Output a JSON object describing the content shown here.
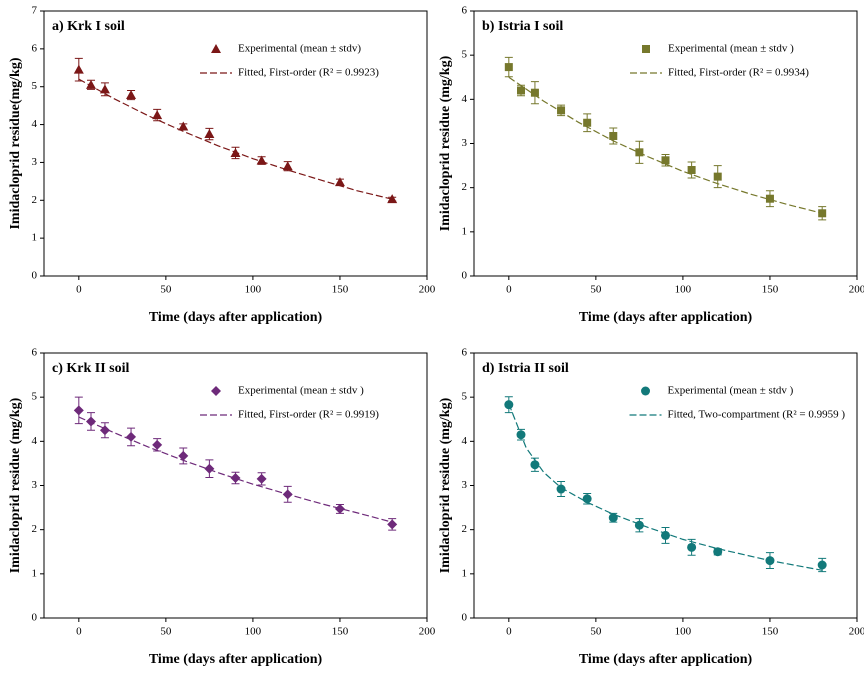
{
  "chart_data": [
    {
      "type": "scatter",
      "title": "a) Krk I soil",
      "x_label": "Time (days after application)",
      "y_label": "Imidacloprid residue(mg/kg)",
      "xlim": [
        -20,
        200
      ],
      "xticks": [
        0,
        50,
        100,
        150,
        200
      ],
      "ylim": [
        0,
        7
      ],
      "yticks": [
        0,
        1,
        2,
        3,
        4,
        5,
        6,
        7
      ],
      "series": [
        {
          "name": "Experimental (mean ± stdv)",
          "color": "#7b1717",
          "marker": "triangle",
          "x": [
            0,
            7,
            15,
            30,
            45,
            60,
            75,
            90,
            105,
            120,
            150,
            180
          ],
          "values": [
            5.45,
            5.05,
            4.93,
            4.78,
            4.25,
            3.95,
            3.75,
            3.25,
            3.05,
            2.9,
            2.48,
            2.03
          ],
          "errors": [
            0.3,
            0.12,
            0.17,
            0.12,
            0.15,
            0.07,
            0.15,
            0.15,
            0.1,
            0.12,
            0.08,
            0.05
          ]
        },
        {
          "name": "Fitted, First-order (R² = 0.9923)",
          "color": "#7b1717",
          "line": "dashed",
          "x": [
            0,
            20,
            40,
            60,
            80,
            100,
            120,
            140,
            160,
            180
          ],
          "values": [
            5.2,
            4.69,
            4.23,
            3.82,
            3.44,
            3.1,
            2.8,
            2.52,
            2.25,
            2.03
          ]
        }
      ]
    },
    {
      "type": "scatter",
      "title": "b) Istria I soil",
      "x_label": "Time (days after application)",
      "y_label": "Imidacloprid residue (mg/kg)",
      "xlim": [
        -20,
        200
      ],
      "xticks": [
        0,
        50,
        100,
        150,
        200
      ],
      "ylim": [
        0,
        6
      ],
      "yticks": [
        0,
        1,
        2,
        3,
        4,
        5,
        6
      ],
      "series": [
        {
          "name": "Experimental (mean ± stdv )",
          "color": "#76782c",
          "marker": "square",
          "x": [
            0,
            7,
            15,
            30,
            45,
            60,
            75,
            90,
            105,
            120,
            150,
            180
          ],
          "values": [
            4.73,
            4.2,
            4.15,
            3.75,
            3.47,
            3.17,
            2.8,
            2.62,
            2.4,
            2.25,
            1.75,
            1.42
          ],
          "errors": [
            0.22,
            0.12,
            0.25,
            0.12,
            0.2,
            0.18,
            0.25,
            0.13,
            0.18,
            0.25,
            0.18,
            0.15
          ]
        },
        {
          "name": "Fitted, First-order (R² = 0.9934)",
          "color": "#76782c",
          "line": "dashed",
          "x": [
            0,
            20,
            40,
            60,
            80,
            100,
            120,
            140,
            160,
            180
          ],
          "values": [
            4.5,
            3.96,
            3.48,
            3.06,
            2.7,
            2.37,
            2.09,
            1.84,
            1.62,
            1.42
          ]
        }
      ]
    },
    {
      "type": "scatter",
      "title": "c) Krk II soil",
      "x_label": "Time (days after application)",
      "y_label": "Imidacloprid residue (mg/kg)",
      "xlim": [
        -20,
        200
      ],
      "xticks": [
        0,
        50,
        100,
        150,
        200
      ],
      "ylim": [
        0,
        6
      ],
      "yticks": [
        0,
        1,
        2,
        3,
        4,
        5,
        6
      ],
      "series": [
        {
          "name": "Experimental (mean ± stdv )",
          "color": "#6e2a7a",
          "marker": "diamond",
          "x": [
            0,
            7,
            15,
            30,
            45,
            60,
            75,
            90,
            105,
            120,
            150,
            180
          ],
          "values": [
            4.7,
            4.45,
            4.25,
            4.1,
            3.92,
            3.67,
            3.38,
            3.17,
            3.15,
            2.8,
            2.47,
            2.12
          ],
          "errors": [
            0.3,
            0.2,
            0.17,
            0.2,
            0.14,
            0.18,
            0.2,
            0.13,
            0.14,
            0.18,
            0.1,
            0.13
          ]
        },
        {
          "name": "Fitted, First-order (R² = 0.9919)",
          "color": "#6e2a7a",
          "line": "dashed",
          "x": [
            0,
            20,
            40,
            60,
            80,
            100,
            120,
            140,
            160,
            180
          ],
          "values": [
            4.55,
            4.2,
            3.87,
            3.57,
            3.29,
            3.03,
            2.8,
            2.58,
            2.38,
            2.17
          ]
        }
      ]
    },
    {
      "type": "scatter",
      "title": "d) Istria II soil",
      "x_label": "Time (days after application)",
      "y_label": "Imidacloprid residue (mg/kg)",
      "xlim": [
        -20,
        200
      ],
      "xticks": [
        0,
        50,
        100,
        150,
        200
      ],
      "ylim": [
        0,
        6
      ],
      "yticks": [
        0,
        1,
        2,
        3,
        4,
        5,
        6
      ],
      "series": [
        {
          "name": "Experimental (mean ± stdv )",
          "color": "#12797a",
          "marker": "circle",
          "x": [
            0,
            7,
            15,
            30,
            45,
            60,
            75,
            90,
            105,
            120,
            150,
            180
          ],
          "values": [
            4.83,
            4.15,
            3.47,
            2.92,
            2.7,
            2.27,
            2.1,
            1.87,
            1.6,
            1.5,
            1.3,
            1.2
          ],
          "errors": [
            0.18,
            0.12,
            0.15,
            0.17,
            0.12,
            0.1,
            0.15,
            0.18,
            0.18,
            0.07,
            0.18,
            0.15
          ]
        },
        {
          "name": "Fitted, Two-compartment (R² = 0.9959 )",
          "color": "#12797a",
          "line": "dashed",
          "x": [
            0,
            10,
            20,
            30,
            45,
            60,
            80,
            100,
            120,
            150,
            180
          ],
          "values": [
            4.85,
            3.85,
            3.3,
            2.95,
            2.62,
            2.35,
            2.05,
            1.78,
            1.57,
            1.3,
            1.08
          ]
        }
      ]
    }
  ]
}
